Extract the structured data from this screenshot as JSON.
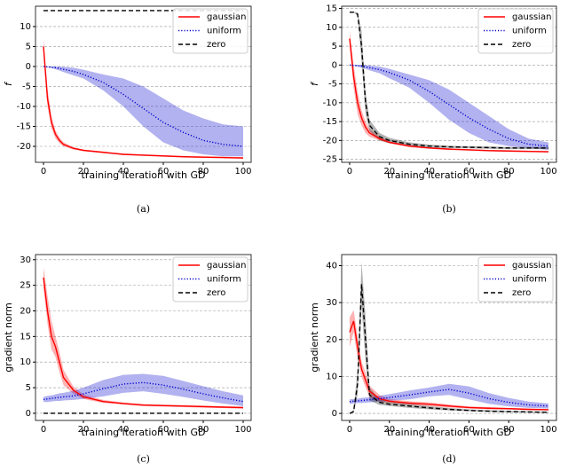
{
  "chart_data": [
    {
      "type": "line",
      "caption": "(a)",
      "xlabel": "training iteration with GD",
      "ylabel": "f",
      "x": [
        0,
        2,
        4,
        6,
        8,
        10,
        15,
        20,
        30,
        40,
        50,
        60,
        70,
        80,
        90,
        100
      ],
      "xlim": [
        -4,
        104
      ],
      "xticks": [
        0,
        20,
        40,
        60,
        80,
        100
      ],
      "ylim": [
        -24,
        15.1
      ],
      "yticks": [
        10,
        5,
        0,
        -5,
        -10,
        -15,
        -20
      ],
      "grid": "y",
      "legend": "upper right",
      "series": [
        {
          "name": "gaussian",
          "color": "#ff0000",
          "dash": "solid",
          "values": [
            5,
            -8,
            -14,
            -17,
            -18.5,
            -19.5,
            -20.5,
            -21,
            -21.5,
            -22,
            -22.2,
            -22.4,
            -22.6,
            -22.7,
            -22.8,
            -22.9
          ],
          "upper": [
            7,
            -5.5,
            -12.5,
            -16,
            -17.8,
            -19,
            -20.2,
            -20.8,
            -21.3,
            -21.8,
            -22,
            -22.2,
            -22.4,
            -22.5,
            -22.6,
            -22.7
          ],
          "lower": [
            3,
            -10,
            -15.5,
            -18,
            -19.2,
            -20,
            -20.8,
            -21.2,
            -21.7,
            -22.2,
            -22.4,
            -22.6,
            -22.8,
            -22.9,
            -23,
            -23.1
          ]
        },
        {
          "name": "uniform",
          "color": "#0000cc",
          "dash": "dotted",
          "values": [
            0,
            -0.1,
            -0.2,
            -0.3,
            -0.5,
            -0.7,
            -1.2,
            -2,
            -4,
            -7,
            -10.5,
            -14,
            -16.5,
            -18.5,
            -19.5,
            -20
          ],
          "upper": [
            0,
            0,
            0,
            0,
            0,
            -0.1,
            -0.3,
            -0.8,
            -2,
            -3,
            -5,
            -8,
            -11,
            -13,
            -14.5,
            -15
          ],
          "lower": [
            0,
            -0.2,
            -0.4,
            -0.7,
            -1,
            -1.4,
            -2.2,
            -3,
            -6,
            -10,
            -15,
            -19,
            -21,
            -22,
            -22.5,
            -22.5
          ]
        },
        {
          "name": "zero",
          "color": "#000000",
          "dash": "dashed",
          "values": [
            14,
            14,
            14,
            14,
            14,
            14,
            14,
            14,
            14,
            14,
            14,
            14,
            14,
            14,
            14,
            14
          ],
          "upper": [
            14,
            14,
            14,
            14,
            14,
            14,
            14,
            14,
            14,
            14,
            14,
            14,
            14,
            14,
            14,
            14
          ],
          "lower": [
            14,
            14,
            14,
            14,
            14,
            14,
            14,
            14,
            14,
            14,
            14,
            14,
            14,
            14,
            14,
            14
          ]
        }
      ]
    },
    {
      "type": "line",
      "caption": "(b)",
      "xlabel": "training iteration with GD",
      "ylabel": "f",
      "x": [
        0,
        2,
        4,
        6,
        8,
        10,
        15,
        20,
        30,
        40,
        50,
        60,
        70,
        80,
        90,
        100
      ],
      "xlim": [
        -4,
        104
      ],
      "xticks": [
        0,
        20,
        40,
        60,
        80,
        100
      ],
      "ylim": [
        -25.8,
        15.6
      ],
      "yticks": [
        15,
        10,
        5,
        0,
        -5,
        -10,
        -15,
        -20,
        -25
      ],
      "grid": "y",
      "legend": "upper right",
      "series": [
        {
          "name": "gaussian",
          "color": "#ff0000",
          "dash": "solid",
          "values": [
            7,
            -3,
            -10,
            -14,
            -16.5,
            -18,
            -19.5,
            -20.5,
            -21.5,
            -22,
            -22.3,
            -22.5,
            -22.7,
            -22.8,
            -22.9,
            -23
          ],
          "upper": [
            9,
            0,
            -7,
            -12,
            -15,
            -17,
            -19,
            -20.2,
            -21.2,
            -21.8,
            -22.1,
            -22.3,
            -22.5,
            -22.6,
            -22.7,
            -22.8
          ],
          "lower": [
            5,
            -6,
            -13,
            -16,
            -18,
            -19,
            -20,
            -20.8,
            -21.8,
            -22.2,
            -22.5,
            -22.7,
            -22.9,
            -23,
            -23.1,
            -23.2
          ]
        },
        {
          "name": "uniform",
          "color": "#0000cc",
          "dash": "dotted",
          "values": [
            0,
            -0.1,
            -0.2,
            -0.3,
            -0.5,
            -0.7,
            -1.2,
            -2,
            -4,
            -7,
            -10.5,
            -14,
            -17,
            -19.5,
            -21,
            -21.5
          ],
          "upper": [
            0,
            0,
            0,
            0,
            0,
            -0.1,
            -0.4,
            -1,
            -2.5,
            -4,
            -6.5,
            -10,
            -13.5,
            -17,
            -19.5,
            -20.5
          ],
          "lower": [
            0,
            -0.2,
            -0.4,
            -0.7,
            -1,
            -1.4,
            -2.2,
            -3.5,
            -6,
            -10,
            -14.5,
            -18,
            -20.5,
            -21.5,
            -22,
            -22.5
          ]
        },
        {
          "name": "zero",
          "color": "#000000",
          "dash": "dashed",
          "values": [
            14,
            14,
            13.5,
            5,
            -10,
            -16,
            -19,
            -20,
            -21,
            -21.5,
            -21.7,
            -21.8,
            -21.9,
            -22,
            -22,
            -22
          ],
          "upper": [
            14,
            14,
            14,
            9,
            -7,
            -14.5,
            -18,
            -19.3,
            -20.5,
            -21.1,
            -21.4,
            -21.5,
            -21.6,
            -21.7,
            -21.7,
            -21.7
          ],
          "lower": [
            14,
            14,
            13,
            1,
            -13,
            -17.5,
            -20,
            -20.7,
            -21.5,
            -21.9,
            -22,
            -22.1,
            -22.2,
            -22.3,
            -22.3,
            -22.3
          ]
        }
      ]
    },
    {
      "type": "line",
      "caption": "(c)",
      "xlabel": "training iteration with GD",
      "ylabel": "gradient norm",
      "x": [
        0,
        2,
        4,
        6,
        8,
        10,
        15,
        20,
        30,
        40,
        50,
        60,
        70,
        80,
        90,
        100
      ],
      "xlim": [
        -4,
        104
      ],
      "xticks": [
        0,
        20,
        40,
        60,
        80,
        100
      ],
      "ylim": [
        -1.4,
        31
      ],
      "yticks": [
        0,
        5,
        10,
        15,
        20,
        25,
        30
      ],
      "grid": "y",
      "legend": "upper right",
      "series": [
        {
          "name": "gaussian",
          "color": "#ff0000",
          "dash": "solid",
          "values": [
            26.5,
            20,
            15,
            13,
            10,
            7,
            4.5,
            3.2,
            2.3,
            1.9,
            1.6,
            1.5,
            1.4,
            1.3,
            1.2,
            1.1
          ],
          "upper": [
            28.5,
            23,
            18,
            15,
            12,
            8.5,
            5.2,
            3.7,
            2.6,
            2.1,
            1.8,
            1.7,
            1.6,
            1.5,
            1.4,
            1.3
          ],
          "lower": [
            24.5,
            17.5,
            12.5,
            11,
            8,
            5.5,
            3.8,
            2.8,
            2,
            1.7,
            1.4,
            1.3,
            1.2,
            1.1,
            1,
            0.9
          ]
        },
        {
          "name": "uniform",
          "color": "#0000cc",
          "dash": "dotted",
          "values": [
            2.7,
            2.8,
            2.9,
            3,
            3.1,
            3.2,
            3.4,
            3.8,
            4.8,
            5.7,
            6,
            5.5,
            4.7,
            3.8,
            3,
            2.3
          ],
          "upper": [
            3.2,
            3.4,
            3.5,
            3.7,
            3.9,
            4,
            4.4,
            5,
            6.5,
            7.5,
            7.7,
            7.3,
            6.3,
            5.3,
            4.3,
            3.5
          ],
          "lower": [
            2.2,
            2.2,
            2.3,
            2.4,
            2.4,
            2.5,
            2.6,
            2.8,
            3.3,
            4,
            4.3,
            3.8,
            3.2,
            2.5,
            1.9,
            1.4
          ]
        },
        {
          "name": "zero",
          "color": "#000000",
          "dash": "dashed",
          "values": [
            0,
            0,
            0,
            0,
            0,
            0,
            0,
            0,
            0,
            0,
            0,
            0,
            0,
            0,
            0,
            0
          ],
          "upper": [
            0,
            0,
            0,
            0,
            0,
            0,
            0,
            0,
            0,
            0,
            0,
            0,
            0,
            0,
            0,
            0
          ],
          "lower": [
            0,
            0,
            0,
            0,
            0,
            0,
            0,
            0,
            0,
            0,
            0,
            0,
            0,
            0,
            0,
            0
          ]
        }
      ]
    },
    {
      "type": "line",
      "caption": "(d)",
      "xlabel": "training iteration with GD",
      "ylabel": "gradient norm",
      "x": [
        0,
        2,
        4,
        6,
        8,
        10,
        15,
        20,
        30,
        40,
        50,
        60,
        70,
        80,
        90,
        100
      ],
      "xlim": [
        -4,
        104
      ],
      "xticks": [
        0,
        20,
        40,
        60,
        80,
        100
      ],
      "ylim": [
        -1.9,
        43
      ],
      "yticks": [
        0,
        10,
        20,
        30,
        40
      ],
      "grid": "y",
      "legend": "upper right",
      "series": [
        {
          "name": "gaussian",
          "color": "#ff0000",
          "dash": "solid",
          "values": [
            22,
            25,
            18,
            12,
            9,
            6,
            4,
            3.3,
            2.8,
            2.5,
            2,
            1.6,
            1.4,
            1.3,
            1.1,
            1
          ],
          "upper": [
            26,
            28,
            21,
            14,
            11,
            7.5,
            5,
            3.9,
            3.3,
            3,
            2.4,
            1.9,
            1.7,
            1.5,
            1.3,
            1.2
          ],
          "lower": [
            18,
            22,
            15,
            10,
            7,
            4.5,
            3.2,
            2.8,
            2.3,
            2,
            1.6,
            1.3,
            1.1,
            1,
            0.9,
            0.8
          ]
        },
        {
          "name": "uniform",
          "color": "#0000cc",
          "dash": "dotted",
          "values": [
            3.2,
            3.3,
            3.4,
            3.5,
            3.6,
            3.7,
            4,
            4.3,
            5,
            5.8,
            6.5,
            5.5,
            4,
            3,
            2.3,
            2
          ],
          "upper": [
            3.8,
            3.9,
            4,
            4.2,
            4.3,
            4.4,
            4.8,
            5.2,
            6.2,
            7,
            8,
            7.3,
            5.5,
            4.2,
            3.2,
            2.7
          ],
          "lower": [
            2.6,
            2.7,
            2.8,
            2.8,
            2.9,
            3,
            3.2,
            3.4,
            3.8,
            4.6,
            5,
            3.8,
            2.6,
            1.9,
            1.5,
            1.3
          ]
        },
        {
          "name": "zero",
          "color": "#000000",
          "dash": "dashed",
          "values": [
            0,
            0.5,
            8,
            35,
            20,
            5,
            3,
            2.5,
            2,
            1.5,
            1.1,
            0.8,
            0.6,
            0.5,
            0.4,
            0.3
          ],
          "upper": [
            0,
            1,
            12,
            41,
            26,
            7,
            3.8,
            3.1,
            2.6,
            2,
            1.5,
            1.1,
            0.9,
            0.7,
            0.6,
            0.5
          ],
          "lower": [
            0,
            0.2,
            5,
            29,
            14,
            3.5,
            2.3,
            2,
            1.5,
            1.1,
            0.8,
            0.6,
            0.4,
            0.3,
            0.2,
            0.1
          ]
        }
      ]
    }
  ]
}
